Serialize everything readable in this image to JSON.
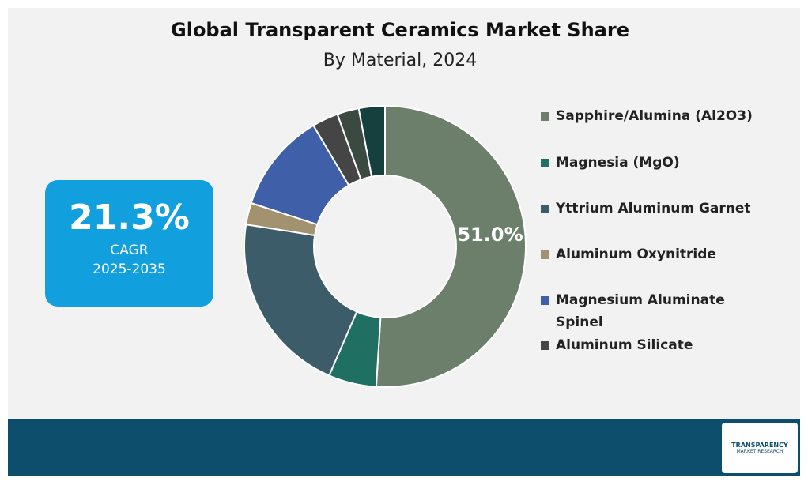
{
  "chart_data": {
    "type": "donut",
    "title": "Global Transparent Ceramics Market Share",
    "subtitle": "By Material, 2024",
    "categories": [
      "Sapphire/Alumina (Al2O3)",
      "Magnesia (MgO)",
      "Yttrium Aluminum Garnet",
      "Aluminum Oxynitride",
      "Magnesium Aluminate Spinel",
      "Aluminum Silicate",
      null,
      null
    ],
    "values": [
      51.0,
      5.5,
      21,
      2.5,
      11.5,
      3,
      2.5,
      3
    ],
    "value_labels": [
      "51.0%",
      null,
      null,
      null,
      null,
      null,
      null,
      null
    ],
    "colors": [
      "#6b7f6b",
      "#1f6f62",
      "#3d5c6a",
      "#a39270",
      "#3f5fa8",
      "#454545",
      "#3a4a40",
      "#15403e"
    ]
  },
  "kpi": {
    "value": "21.3%",
    "label": "CAGR",
    "period": "2025-2035"
  },
  "logo": {
    "name": "TRANSPARENCY",
    "subtitle": "MARKET RESEARCH"
  }
}
